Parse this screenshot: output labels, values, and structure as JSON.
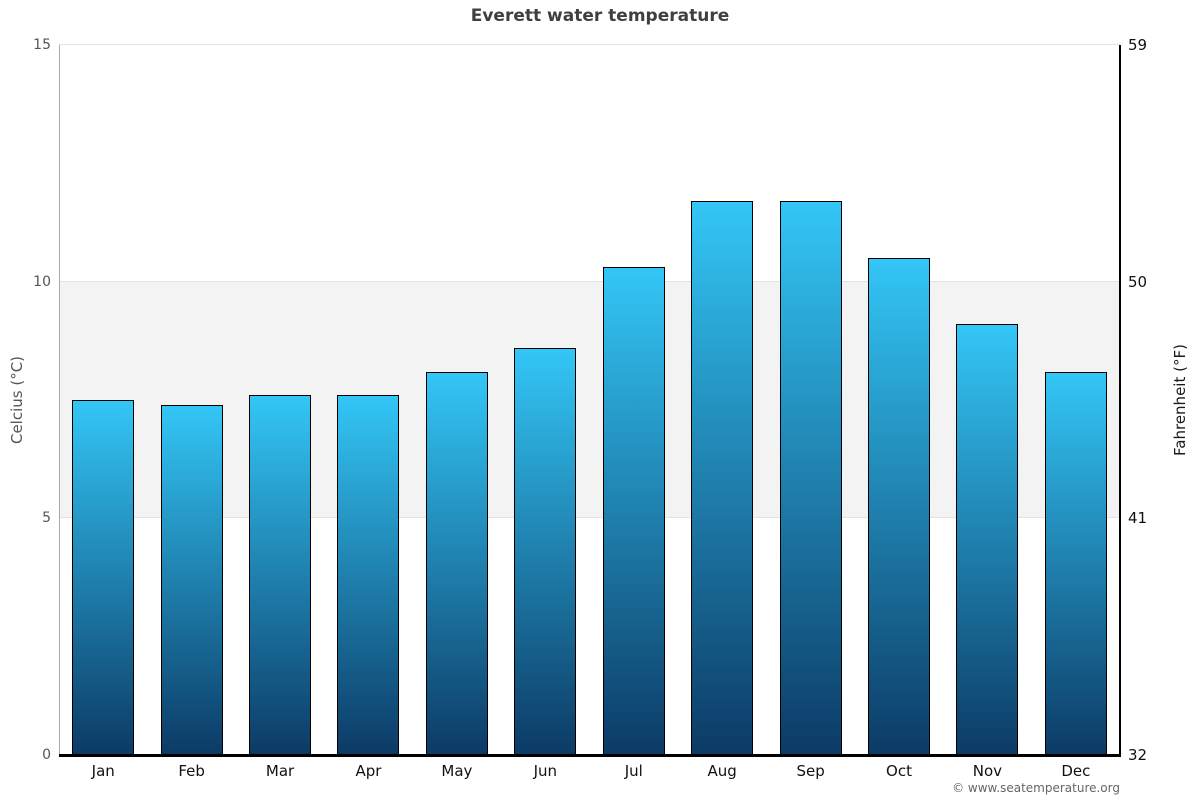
{
  "title": "Everett water temperature",
  "footer": "© www.seatemperature.org",
  "chart_data": {
    "type": "bar",
    "title": "Everett water temperature",
    "categories": [
      "Jan",
      "Feb",
      "Mar",
      "Apr",
      "May",
      "Jun",
      "Jul",
      "Aug",
      "Sep",
      "Oct",
      "Nov",
      "Dec"
    ],
    "values": [
      7.5,
      7.4,
      7.6,
      7.6,
      8.1,
      8.6,
      10.3,
      11.7,
      11.7,
      10.5,
      9.1,
      8.1
    ],
    "xlabel": "",
    "ylabel_left": "Celcius (°C)",
    "ylabel_right": "Fahrenheit (°F)",
    "ylim_c": [
      0,
      15
    ],
    "yticks_c": [
      0,
      5,
      10,
      15
    ],
    "yticks_f": [
      32,
      41,
      50,
      59
    ],
    "plot_band": {
      "from": 5,
      "to": 10
    },
    "grid": "horizontal line at each celsius tick, shaded band 5-10",
    "legend": "none",
    "colors": {
      "bar_top": "#33c6f6",
      "bar_bottom": "#0c3b66",
      "bar_border": "#000000",
      "band": "#f3f3f3",
      "grid_line": "#e2e2e2",
      "title": "#3f3f3f",
      "left_axis_line": "#a9a9a9",
      "right_axis_line": "#000000",
      "bottom_axis_line": "#000000",
      "left_tick_text": "#555555",
      "right_tick_text": "#111111",
      "footer_text": "#666666"
    }
  }
}
